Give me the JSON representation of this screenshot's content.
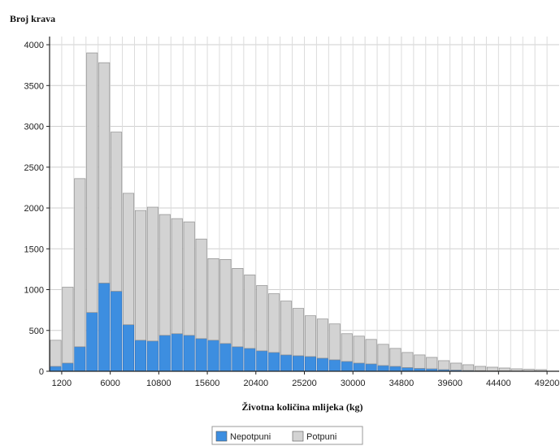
{
  "chart_data": {
    "type": "bar",
    "stacked": true,
    "ylabel": "Broj krava",
    "xlabel": "Životna količina mlijeka (kg)",
    "xlim": [
      0,
      50400
    ],
    "ylim": [
      0,
      4100
    ],
    "bin_width": 1200,
    "x_ticks": [
      1200,
      6000,
      10800,
      15600,
      20400,
      25200,
      30000,
      34800,
      39600,
      44400,
      49200
    ],
    "y_ticks": [
      0,
      500,
      1000,
      1500,
      2000,
      2500,
      3000,
      3500,
      4000
    ],
    "grid": true,
    "legend": "bottom-center",
    "x": [
      600,
      1800,
      3000,
      4200,
      5400,
      6600,
      7800,
      9000,
      10200,
      11400,
      12600,
      13800,
      15000,
      16200,
      17400,
      18600,
      19800,
      21000,
      22200,
      23400,
      24600,
      25800,
      27000,
      28200,
      29400,
      30600,
      31800,
      33000,
      34200,
      35400,
      36600,
      37800,
      39000,
      40200,
      41400,
      42600,
      43800,
      45000,
      46200,
      47400,
      48600
    ],
    "series": [
      {
        "name": "Nepotpuni",
        "color": "#3d8ee0",
        "values": [
          60,
          100,
          300,
          720,
          1080,
          980,
          570,
          380,
          370,
          440,
          460,
          440,
          400,
          380,
          340,
          300,
          280,
          250,
          230,
          200,
          190,
          180,
          160,
          140,
          120,
          100,
          90,
          70,
          60,
          45,
          35,
          30,
          20,
          15,
          10,
          8,
          5,
          5,
          3,
          2,
          2
        ]
      },
      {
        "name": "Potpuni",
        "color": "#d3d3d3",
        "values": [
          320,
          930,
          2060,
          3180,
          2700,
          1950,
          1610,
          1590,
          1640,
          1480,
          1410,
          1390,
          1220,
          1000,
          1030,
          960,
          900,
          800,
          720,
          660,
          580,
          500,
          480,
          440,
          340,
          330,
          300,
          260,
          220,
          185,
          165,
          140,
          110,
          85,
          70,
          52,
          45,
          35,
          27,
          23,
          18
        ]
      }
    ]
  }
}
